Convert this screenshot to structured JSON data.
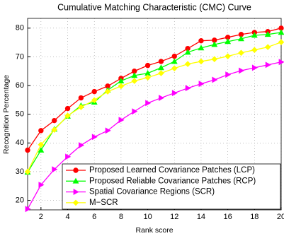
{
  "chart_data": {
    "type": "line",
    "title": "Cumulative Matching Characteristic (CMC) Curve",
    "x_label": "Rank score",
    "y_label": "Recognition Percentage",
    "x": [
      1,
      2,
      3,
      4,
      5,
      6,
      7,
      8,
      9,
      10,
      11,
      12,
      13,
      14,
      15,
      16,
      17,
      18,
      19,
      20
    ],
    "xlim": [
      1,
      20
    ],
    "xticks": [
      2,
      4,
      6,
      8,
      10,
      12,
      14,
      16,
      18,
      20
    ],
    "ylim": [
      16.7,
      83.4
    ],
    "yticks": [
      20,
      30,
      40,
      50,
      60,
      70,
      80
    ],
    "grid": true,
    "legend": "lower right",
    "series": [
      {
        "name": "Proposed Learned Covariance Patches (LCP)",
        "color": "#ff0000",
        "marker": "circle",
        "values": [
          37.5,
          44.3,
          47.8,
          52,
          55.7,
          57.9,
          59.8,
          62.5,
          65,
          67,
          68.4,
          70.2,
          72.9,
          75.6,
          75.8,
          76.8,
          77.8,
          78.5,
          78.8,
          80
        ]
      },
      {
        "name": "Proposed Reliable Covariance Patches (RCP)",
        "color": "#00ff00",
        "marker": "triangle-up",
        "values": [
          29.8,
          37.5,
          44.8,
          49.3,
          53,
          54.2,
          58.4,
          61.6,
          63.5,
          64.3,
          66.2,
          68.4,
          71.6,
          73.1,
          74.3,
          75.3,
          76.3,
          77.5,
          77.8,
          78.5
        ]
      },
      {
        "name": "Spatial Covariance Regions (SCR)",
        "color": "#ff00ff",
        "marker": "triangle-right",
        "values": [
          17,
          25.4,
          30.8,
          35.2,
          39.2,
          42.1,
          44.3,
          48,
          51,
          53.9,
          55.7,
          57.4,
          59.1,
          60.6,
          62,
          63.8,
          65.2,
          66.2,
          67.2,
          68.2
        ]
      },
      {
        "name": "M−SCR",
        "color": "#ffff00",
        "marker": "diamond",
        "values": [
          30,
          39.4,
          44.6,
          49.5,
          52.5,
          54.9,
          57.9,
          59.8,
          61.6,
          62.8,
          64.3,
          66,
          67.5,
          68.4,
          69.2,
          70.2,
          71.4,
          72.4,
          73.4,
          75.1
        ]
      }
    ]
  }
}
